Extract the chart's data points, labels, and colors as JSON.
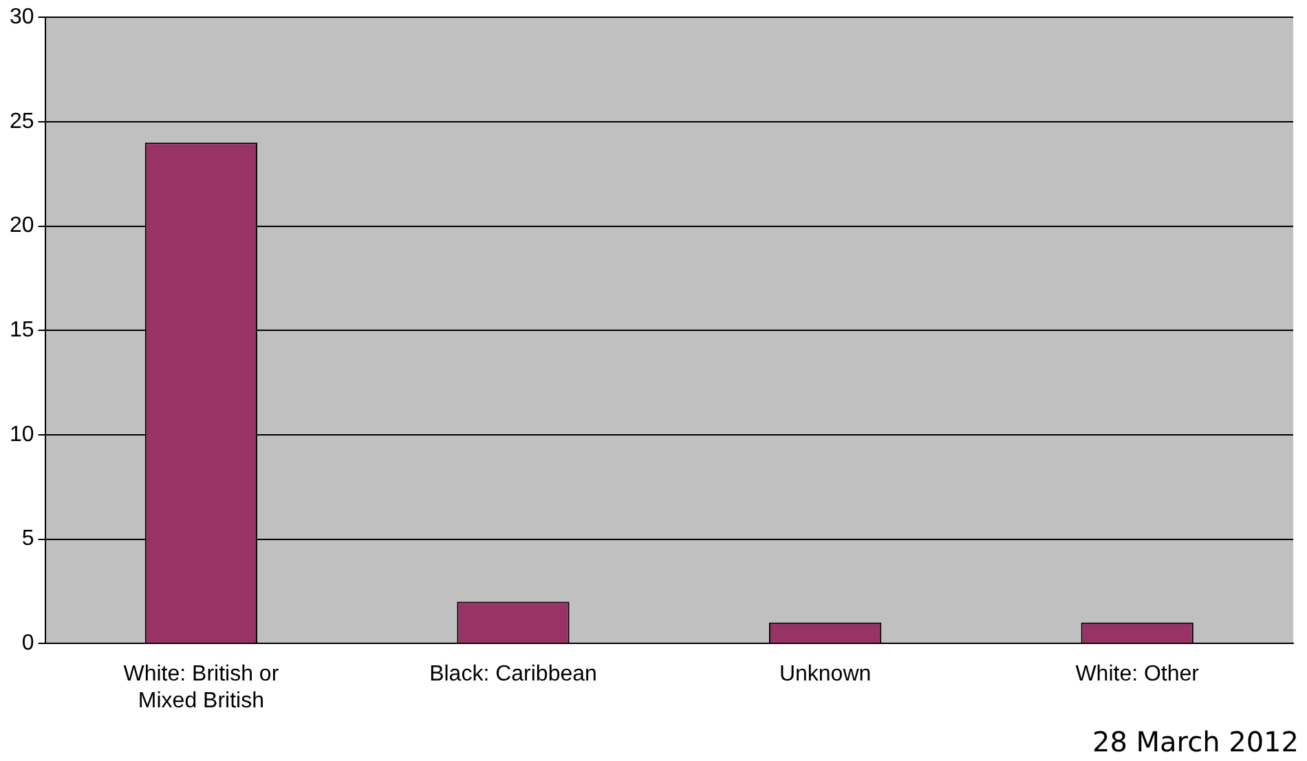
{
  "chart_data": {
    "type": "bar",
    "categories": [
      "White: British or Mixed British",
      "Black: Caribbean",
      "Unknown",
      "White: Other"
    ],
    "values": [
      24,
      2,
      1,
      1
    ],
    "color": "#993366",
    "ylim": [
      0,
      30
    ],
    "yticks": [
      0,
      5,
      10,
      15,
      20,
      25,
      30
    ],
    "grid": "y",
    "legend": false,
    "annotations": [
      "28 March 2012"
    ]
  }
}
